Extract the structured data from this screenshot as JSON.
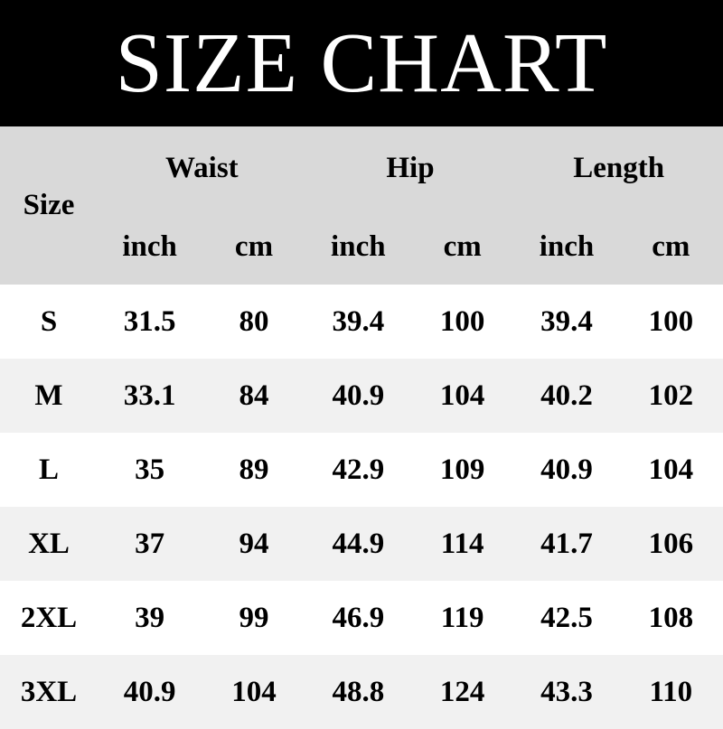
{
  "title": "SIZE CHART",
  "header": {
    "size": "Size",
    "groups": [
      "Waist",
      "Hip",
      "Length"
    ],
    "units": [
      "inch",
      "cm",
      "inch",
      "cm",
      "inch",
      "cm"
    ]
  },
  "rows": [
    [
      "S",
      "31.5",
      "80",
      "39.4",
      "100",
      "39.4",
      "100"
    ],
    [
      "M",
      "33.1",
      "84",
      "40.9",
      "104",
      "40.2",
      "102"
    ],
    [
      "L",
      "35",
      "89",
      "42.9",
      "109",
      "40.9",
      "104"
    ],
    [
      "XL",
      "37",
      "94",
      "44.9",
      "114",
      "41.7",
      "106"
    ],
    [
      "2XL",
      "39",
      "99",
      "46.9",
      "119",
      "42.5",
      "108"
    ],
    [
      "3XL",
      "40.9",
      "104",
      "48.8",
      "124",
      "43.3",
      "110"
    ]
  ],
  "colors": {
    "title_bg": "#000000",
    "header_bg": "#d9d9d9",
    "row_alt_bg": "#f1f1f1"
  }
}
